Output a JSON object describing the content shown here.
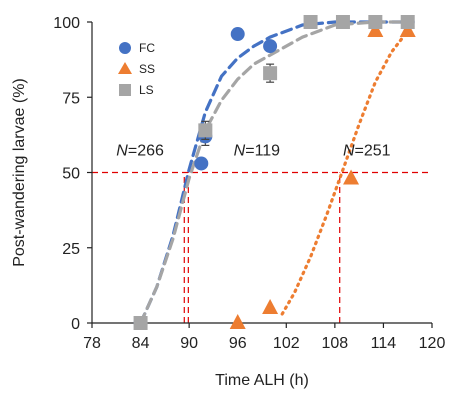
{
  "chart_data": {
    "type": "scatter",
    "xlabel": "Time ALH (h)",
    "ylabel": "Post-wandering larvae (%)",
    "xlim": [
      78,
      120
    ],
    "ylim": [
      0,
      100
    ],
    "xticks": [
      78,
      84,
      90,
      96,
      102,
      108,
      114,
      120
    ],
    "yticks": [
      0,
      25,
      50,
      75,
      100
    ],
    "legend_position": "top-left",
    "grid": false,
    "series": [
      {
        "name": "FC",
        "marker": "circle",
        "color": "#4472C4",
        "line_style": "dashed",
        "points": [
          {
            "x": 84,
            "y": 0
          },
          {
            "x": 91.5,
            "y": 53
          },
          {
            "x": 92,
            "y": 62,
            "err": 3
          },
          {
            "x": 96,
            "y": 96
          },
          {
            "x": 100,
            "y": 92
          },
          {
            "x": 113,
            "y": 100
          },
          {
            "x": 117,
            "y": 100
          }
        ],
        "curve": [
          [
            84,
            0
          ],
          [
            86,
            12
          ],
          [
            88,
            29
          ],
          [
            90,
            51
          ],
          [
            92,
            70
          ],
          [
            94,
            82
          ],
          [
            96,
            88
          ],
          [
            98,
            92
          ],
          [
            100,
            95
          ],
          [
            104,
            99
          ],
          [
            108,
            100
          ],
          [
            113,
            100
          ],
          [
            117,
            100
          ]
        ]
      },
      {
        "name": "SS",
        "marker": "triangle",
        "color": "#ED7D31",
        "line_style": "dotted",
        "points": [
          {
            "x": 96,
            "y": 0
          },
          {
            "x": 100,
            "y": 5
          },
          {
            "x": 110,
            "y": 48
          },
          {
            "x": 113,
            "y": 97
          },
          {
            "x": 117,
            "y": 97
          }
        ],
        "curve": [
          [
            101.5,
            3
          ],
          [
            103,
            10
          ],
          [
            105,
            22
          ],
          [
            107,
            36
          ],
          [
            109,
            51
          ],
          [
            111,
            66
          ],
          [
            113,
            80
          ],
          [
            115,
            90
          ],
          [
            117,
            97
          ]
        ]
      },
      {
        "name": "LS",
        "marker": "square",
        "color": "#A5A5A5",
        "line_style": "dashed",
        "points": [
          {
            "x": 84,
            "y": 0
          },
          {
            "x": 92,
            "y": 64,
            "err": 3
          },
          {
            "x": 100,
            "y": 83,
            "err": 3
          },
          {
            "x": 105,
            "y": 100
          },
          {
            "x": 109,
            "y": 100
          },
          {
            "x": 113,
            "y": 100
          },
          {
            "x": 117,
            "y": 100
          }
        ],
        "curve": [
          [
            84,
            0
          ],
          [
            86,
            12
          ],
          [
            88,
            28
          ],
          [
            90,
            48
          ],
          [
            92,
            64
          ],
          [
            94,
            74
          ],
          [
            96,
            81
          ],
          [
            98,
            86
          ],
          [
            100,
            89
          ],
          [
            104,
            95
          ],
          [
            108,
            99
          ],
          [
            113,
            100
          ],
          [
            117,
            100
          ]
        ]
      }
    ],
    "reference_lines": [
      {
        "type": "h",
        "y": 50,
        "color": "#E00000"
      },
      {
        "type": "v",
        "x": 89.4,
        "color": "#E00000"
      },
      {
        "type": "v",
        "x": 89.9,
        "color": "#E00000"
      },
      {
        "type": "v",
        "x": 108.6,
        "color": "#E00000"
      }
    ],
    "annotations": [
      {
        "label": "N",
        "value": "=266",
        "x": 81,
        "y": 55
      },
      {
        "label": "N",
        "value": "=119",
        "x": 95.5,
        "y": 55
      },
      {
        "label": "N",
        "value": "=251",
        "x": 109,
        "y": 55
      }
    ]
  }
}
